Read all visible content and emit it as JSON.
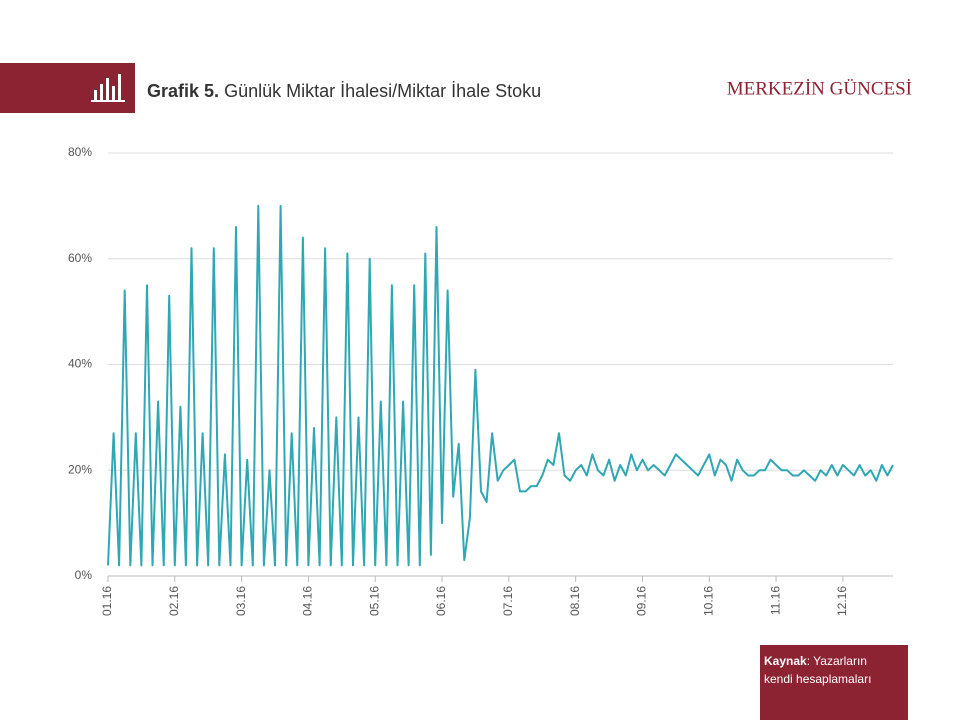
{
  "chart_data": {
    "type": "line",
    "title_prefix": "Grafik 5.",
    "title": "Günlük Miktar İhalesi/Miktar  İhale Stoku",
    "brand": "MERKEZİN GÜNCESİ",
    "source_label": "Kaynak",
    "source_text": ": Yazarların kendi hesaplamaları",
    "categories": [
      "01.16",
      null,
      null,
      null,
      null,
      null,
      null,
      null,
      null,
      null,
      null,
      null,
      "02.16",
      null,
      null,
      null,
      null,
      null,
      null,
      null,
      null,
      null,
      null,
      null,
      "03.16",
      null,
      null,
      null,
      null,
      null,
      null,
      null,
      null,
      null,
      null,
      null,
      "04.16",
      null,
      null,
      null,
      null,
      null,
      null,
      null,
      null,
      null,
      null,
      null,
      "05.16",
      null,
      null,
      null,
      null,
      null,
      null,
      null,
      null,
      null,
      null,
      null,
      "06.16",
      null,
      null,
      null,
      null,
      null,
      null,
      null,
      null,
      null,
      null,
      null,
      "07.16",
      null,
      null,
      null,
      null,
      null,
      null,
      null,
      null,
      null,
      null,
      null,
      "08.16",
      null,
      null,
      null,
      null,
      null,
      null,
      null,
      null,
      null,
      null,
      null,
      "09.16",
      null,
      null,
      null,
      null,
      null,
      null,
      null,
      null,
      null,
      null,
      null,
      "10.16",
      null,
      null,
      null,
      null,
      null,
      null,
      null,
      null,
      null,
      null,
      null,
      "11.16",
      null,
      null,
      null,
      null,
      null,
      null,
      null,
      null,
      null,
      null,
      null,
      "12.16",
      null,
      null,
      null,
      null,
      null,
      null,
      null,
      null,
      null
    ],
    "series": [
      {
        "color": "#2fa8b4",
        "values": [
          2,
          27,
          2,
          54,
          2,
          27,
          2,
          55,
          2,
          33,
          2,
          53,
          2,
          32,
          2,
          62,
          2,
          27,
          2,
          62,
          2,
          23,
          2,
          66,
          2,
          22,
          2,
          70,
          2,
          20,
          2,
          70,
          2,
          27,
          2,
          64,
          2,
          28,
          2,
          62,
          2,
          30,
          2,
          61,
          2,
          30,
          2,
          60,
          2,
          33,
          2,
          55,
          2,
          33,
          2,
          55,
          2,
          61,
          4,
          66,
          10,
          54,
          15,
          25,
          3,
          11,
          39,
          16,
          14,
          27,
          18,
          20,
          21,
          22,
          16,
          16,
          17,
          17,
          19,
          22,
          21,
          27,
          19,
          18,
          20,
          21,
          19,
          23,
          20,
          19,
          22,
          18,
          21,
          19,
          23,
          20,
          22,
          20,
          21,
          20,
          19,
          21,
          23,
          22,
          21,
          20,
          19,
          21,
          23,
          19,
          22,
          21,
          18,
          22,
          20,
          19,
          19,
          20,
          20,
          22,
          21,
          20,
          20,
          19,
          19,
          20,
          19,
          18,
          20,
          19,
          21,
          19,
          21,
          20,
          19,
          21,
          19,
          20,
          18,
          21,
          19,
          21
        ]
      }
    ],
    "ylim": [
      0,
      80
    ],
    "yticks": [
      {
        "value": 0,
        "label": "0%"
      },
      {
        "value": 20,
        "label": "20%"
      },
      {
        "value": 40,
        "label": "40%"
      },
      {
        "value": 60,
        "label": "60%"
      },
      {
        "value": 80,
        "label": "80%"
      }
    ],
    "grid": true
  }
}
